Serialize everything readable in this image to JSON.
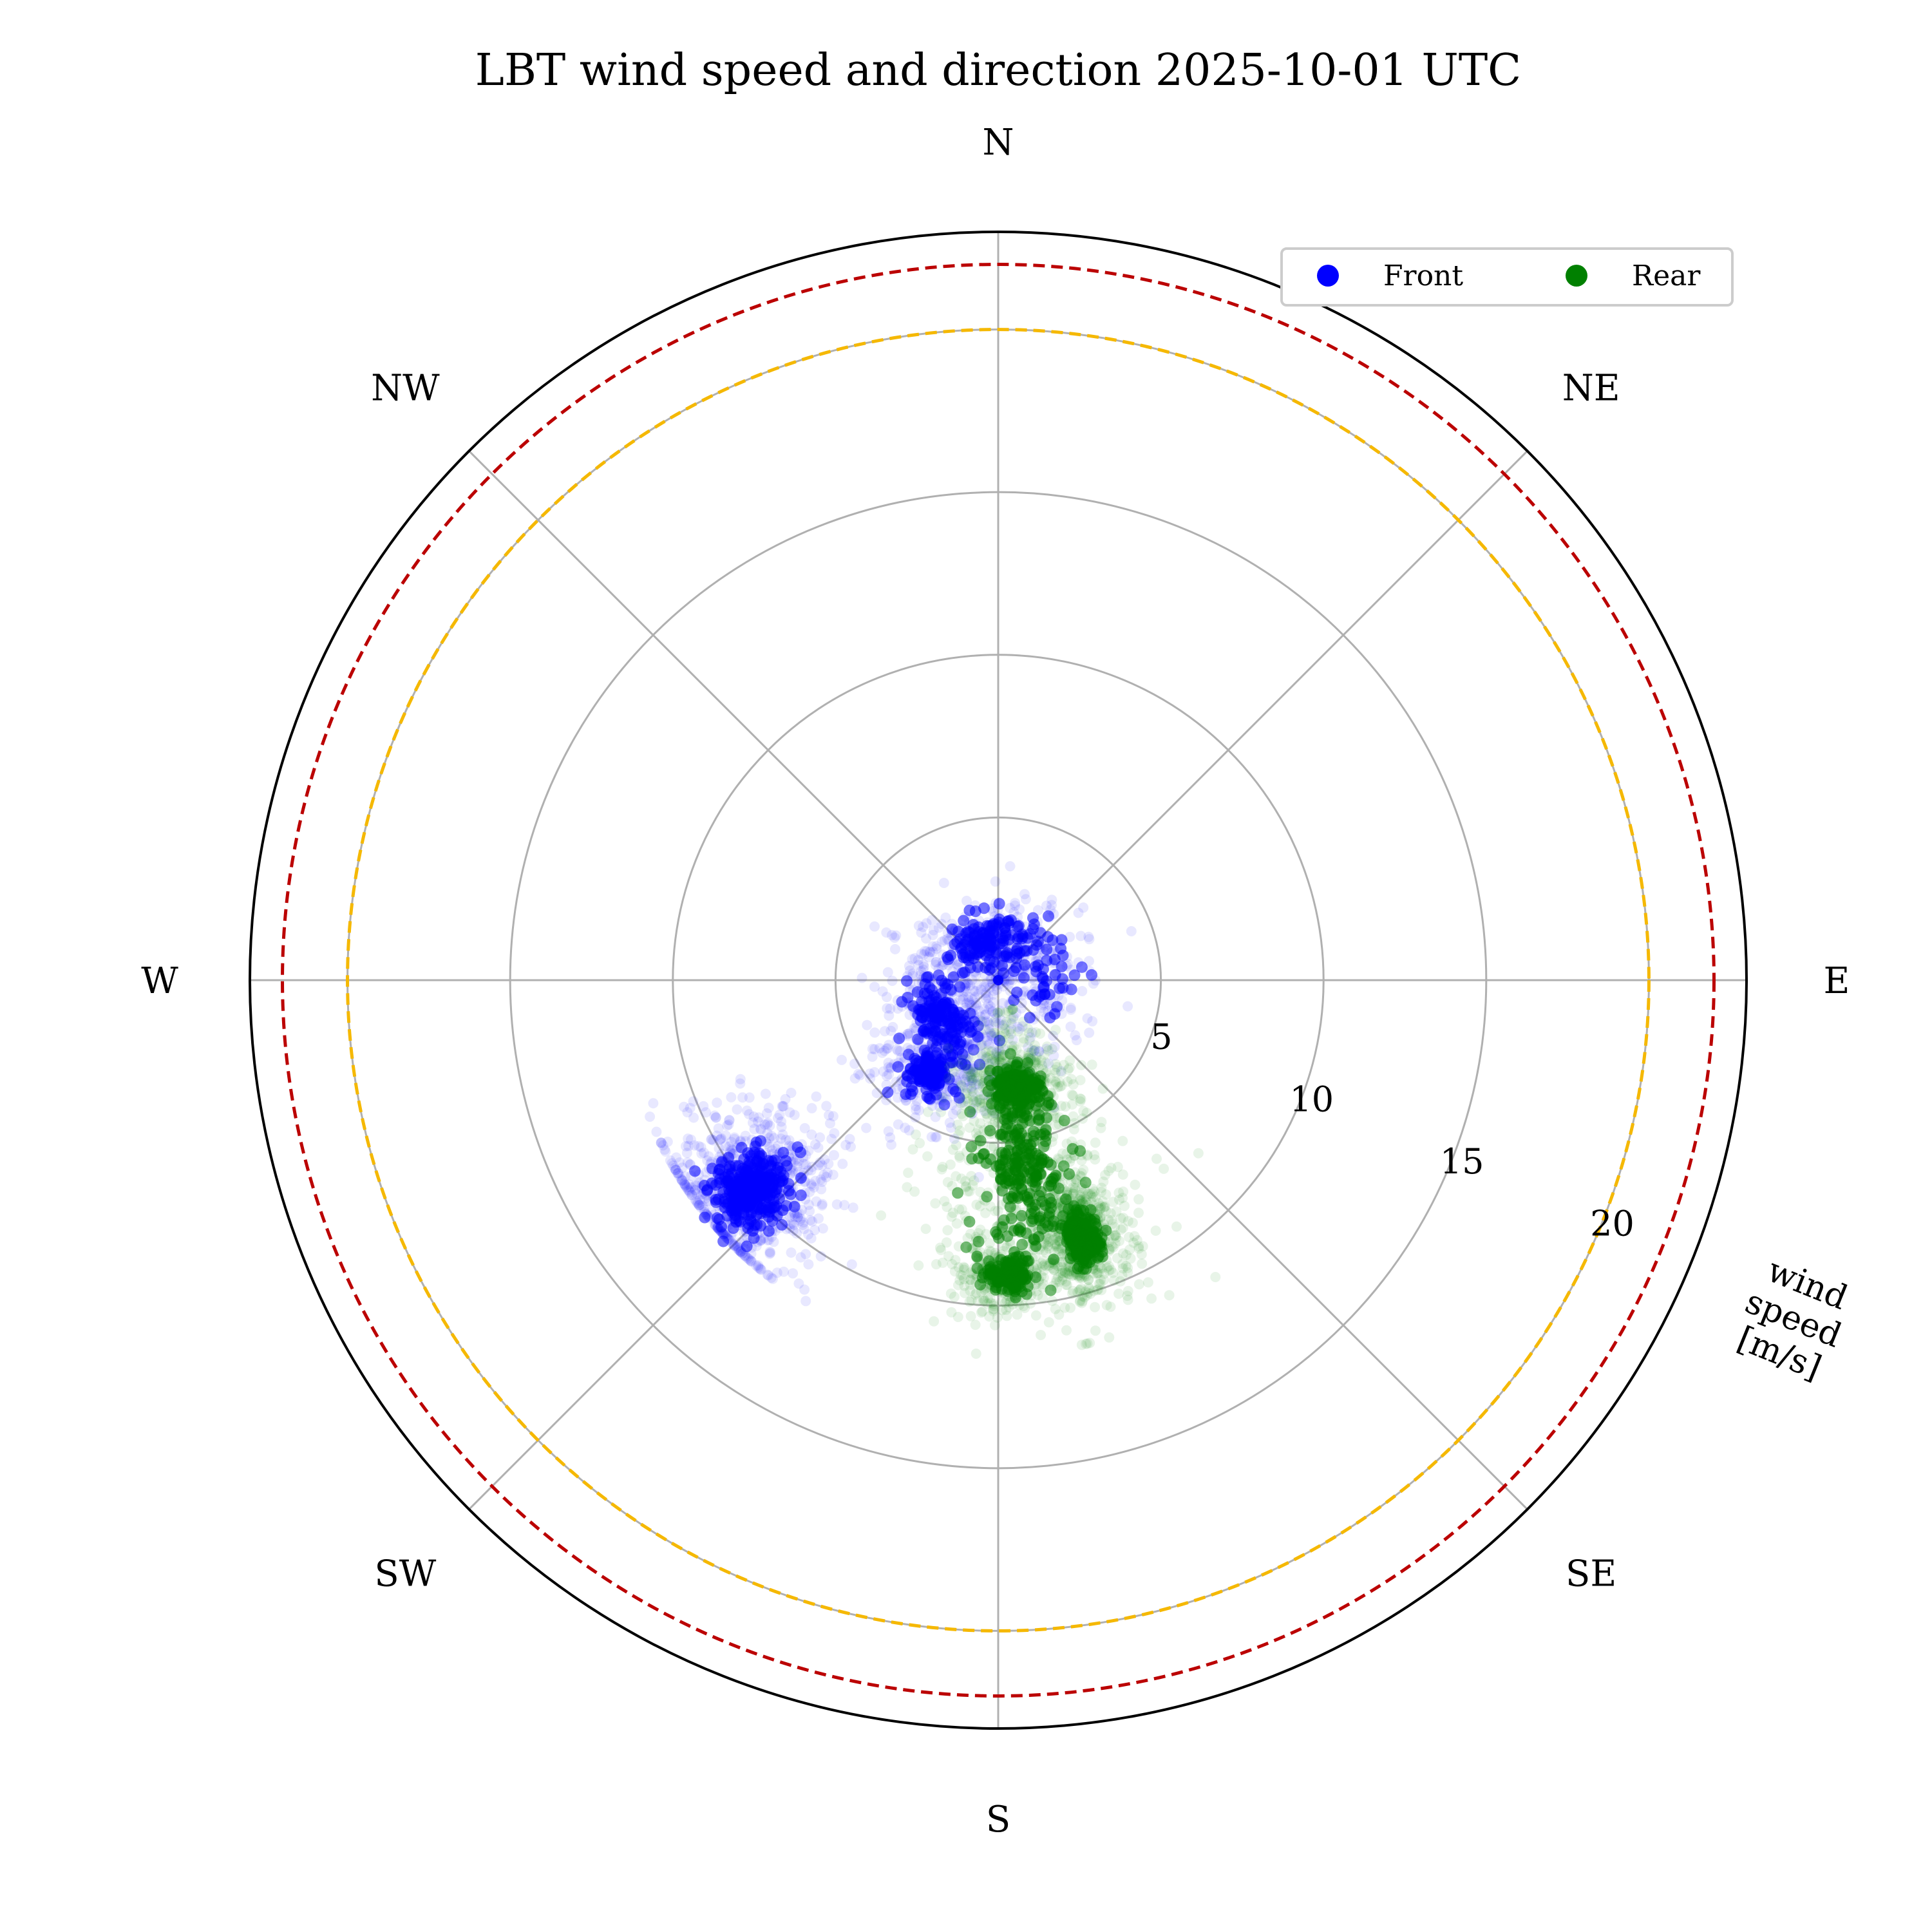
{
  "chart_data": {
    "type": "scatter",
    "projection": "polar",
    "title": "LBT wind speed and direction 2025-10-01 UTC",
    "theta_zero_location": "N",
    "theta_direction": "clockwise",
    "r_max": 23,
    "r_ticks": [
      5,
      10,
      15,
      20
    ],
    "r_tick_labels": [
      "5",
      "10",
      "15",
      "20"
    ],
    "r_label": "wind speed [m/s]",
    "r_label_lines": [
      "wind",
      "speed",
      "[m/s]"
    ],
    "directions": [
      "N",
      "NE",
      "E",
      "SE",
      "S",
      "SW",
      "W",
      "NW"
    ],
    "grid": true,
    "reference_circles": [
      {
        "r": 20,
        "color": "#f5b800",
        "style": "dashed"
      },
      {
        "r": 22,
        "color": "#bb0000",
        "style": "dashed"
      }
    ],
    "legend": {
      "position": "top-right",
      "columns": 2
    },
    "series": [
      {
        "name": "Front",
        "color": "#0000ff",
        "clusters": [
          {
            "dir_deg": 230,
            "speed": 10.0,
            "spread_dir": 7,
            "spread_speed": 1.3,
            "weight": 0.42
          },
          {
            "dir_deg": 217,
            "speed": 3.5,
            "spread_dir": 14,
            "spread_speed": 0.9,
            "weight": 0.15
          },
          {
            "dir_deg": 235,
            "speed": 2.2,
            "spread_dir": 40,
            "spread_speed": 0.8,
            "weight": 0.18
          },
          {
            "dir_deg": 345,
            "speed": 1.4,
            "spread_dir": 80,
            "spread_speed": 0.9,
            "weight": 0.2
          },
          {
            "dir_deg": 90,
            "speed": 1.8,
            "spread_dir": 50,
            "spread_speed": 1.0,
            "weight": 0.05
          }
        ],
        "speed_range": [
          0,
          11.5
        ]
      },
      {
        "name": "Rear",
        "color": "#008000",
        "clusters": [
          {
            "dir_deg": 162,
            "speed": 8.3,
            "spread_dir": 4,
            "spread_speed": 0.9,
            "weight": 0.3
          },
          {
            "dir_deg": 178,
            "speed": 9.1,
            "spread_dir": 5,
            "spread_speed": 0.6,
            "weight": 0.18
          },
          {
            "dir_deg": 170,
            "speed": 3.4,
            "spread_dir": 14,
            "spread_speed": 0.8,
            "weight": 0.22
          },
          {
            "dir_deg": 172,
            "speed": 6.0,
            "spread_dir": 14,
            "spread_speed": 2.4,
            "weight": 0.3
          }
        ],
        "speed_range": [
          1,
          11.5
        ]
      }
    ]
  }
}
